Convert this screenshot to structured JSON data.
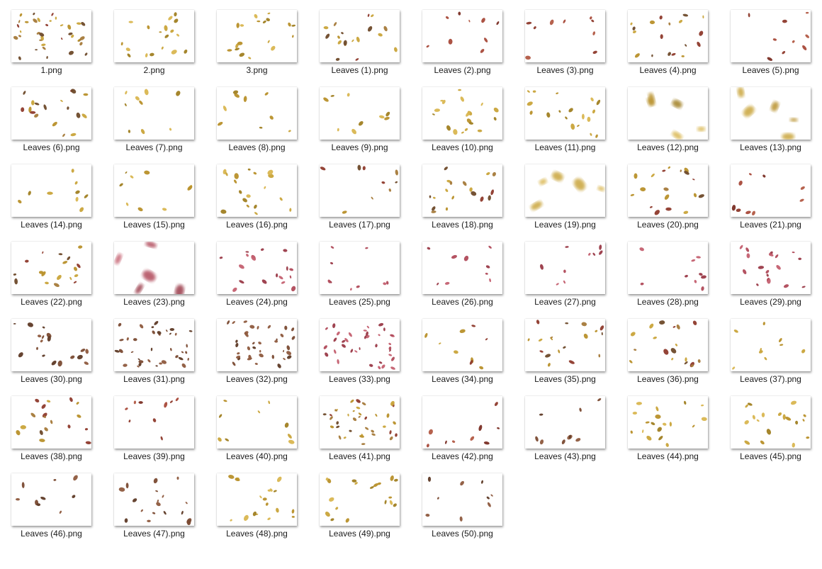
{
  "window": {
    "view": "large-icons"
  },
  "palettes": {
    "gold": [
      "#c9a43a",
      "#b8902a",
      "#d9b650",
      "#a07f22"
    ],
    "red": [
      "#8e3a2c",
      "#a84a3a",
      "#7a2e24",
      "#b25a45"
    ],
    "mixed": [
      "#c9a43a",
      "#8e3a2c",
      "#a57a3a",
      "#6e4a2a",
      "#b8902a"
    ],
    "pink": [
      "#b04a5a",
      "#c46070",
      "#9a3a48"
    ],
    "brown": [
      "#7a4a32",
      "#8e5a3e",
      "#5e3a26"
    ]
  },
  "files": [
    {
      "name": "1.png",
      "palette": "mixed",
      "density": "dense"
    },
    {
      "name": "2.png",
      "palette": "gold",
      "density": "medium"
    },
    {
      "name": "3.png",
      "palette": "gold",
      "density": "medium"
    },
    {
      "name": "Leaves (1).png",
      "palette": "mixed",
      "density": "medium"
    },
    {
      "name": "Leaves (2).png",
      "palette": "red",
      "density": "sparse"
    },
    {
      "name": "Leaves (3).png",
      "palette": "red",
      "density": "sparse"
    },
    {
      "name": "Leaves (4).png",
      "palette": "mixed",
      "density": "medium"
    },
    {
      "name": "Leaves (5).png",
      "palette": "red",
      "density": "sparse"
    },
    {
      "name": "Leaves (6).png",
      "palette": "mixed",
      "density": "medium"
    },
    {
      "name": "Leaves (7).png",
      "palette": "gold",
      "density": "sparse"
    },
    {
      "name": "Leaves (8).png",
      "palette": "gold",
      "density": "sparse"
    },
    {
      "name": "Leaves (9).png",
      "palette": "gold",
      "density": "sparse"
    },
    {
      "name": "Leaves (10).png",
      "palette": "gold",
      "density": "medium"
    },
    {
      "name": "Leaves (11).png",
      "palette": "gold",
      "density": "medium"
    },
    {
      "name": "Leaves (12).png",
      "palette": "gold",
      "density": "blur"
    },
    {
      "name": "Leaves (13).png",
      "palette": "gold",
      "density": "blur"
    },
    {
      "name": "Leaves (14).png",
      "palette": "gold",
      "density": "sparse"
    },
    {
      "name": "Leaves (15).png",
      "palette": "gold",
      "density": "sparse"
    },
    {
      "name": "Leaves (16).png",
      "palette": "gold",
      "density": "medium"
    },
    {
      "name": "Leaves (17).png",
      "palette": "mixed",
      "density": "sparse"
    },
    {
      "name": "Leaves (18).png",
      "palette": "mixed",
      "density": "medium"
    },
    {
      "name": "Leaves (19).png",
      "palette": "gold",
      "density": "blur"
    },
    {
      "name": "Leaves (20).png",
      "palette": "mixed",
      "density": "medium"
    },
    {
      "name": "Leaves (21).png",
      "palette": "red",
      "density": "sparse"
    },
    {
      "name": "Leaves (22).png",
      "palette": "mixed",
      "density": "medium"
    },
    {
      "name": "Leaves (23).png",
      "palette": "pink",
      "density": "blur"
    },
    {
      "name": "Leaves (24).png",
      "palette": "pink",
      "density": "medium"
    },
    {
      "name": "Leaves (25).png",
      "palette": "pink",
      "density": "sparse"
    },
    {
      "name": "Leaves (26).png",
      "palette": "pink",
      "density": "sparse"
    },
    {
      "name": "Leaves (27).png",
      "palette": "pink",
      "density": "sparse"
    },
    {
      "name": "Leaves (28).png",
      "palette": "pink",
      "density": "sparse"
    },
    {
      "name": "Leaves (29).png",
      "palette": "pink",
      "density": "medium"
    },
    {
      "name": "Leaves (30).png",
      "palette": "brown",
      "density": "medium"
    },
    {
      "name": "Leaves (31).png",
      "palette": "brown",
      "density": "dense"
    },
    {
      "name": "Leaves (32).png",
      "palette": "brown",
      "density": "dense"
    },
    {
      "name": "Leaves (33).png",
      "palette": "pink",
      "density": "dense"
    },
    {
      "name": "Leaves (34).png",
      "palette": "mixed",
      "density": "sparse"
    },
    {
      "name": "Leaves (35).png",
      "palette": "mixed",
      "density": "medium"
    },
    {
      "name": "Leaves (36).png",
      "palette": "mixed",
      "density": "medium"
    },
    {
      "name": "Leaves (37).png",
      "palette": "gold",
      "density": "sparse"
    },
    {
      "name": "Leaves (38).png",
      "palette": "mixed",
      "density": "medium"
    },
    {
      "name": "Leaves (39).png",
      "palette": "red",
      "density": "sparse"
    },
    {
      "name": "Leaves (40).png",
      "palette": "gold",
      "density": "sparse"
    },
    {
      "name": "Leaves (41).png",
      "palette": "mixed",
      "density": "dense"
    },
    {
      "name": "Leaves (42).png",
      "palette": "red",
      "density": "sparse"
    },
    {
      "name": "Leaves (43).png",
      "palette": "brown",
      "density": "sparse"
    },
    {
      "name": "Leaves (44).png",
      "palette": "gold",
      "density": "medium"
    },
    {
      "name": "Leaves (45).png",
      "palette": "gold",
      "density": "medium"
    },
    {
      "name": "Leaves (46).png",
      "palette": "brown",
      "density": "sparse"
    },
    {
      "name": "Leaves (47).png",
      "palette": "brown",
      "density": "medium"
    },
    {
      "name": "Leaves (48).png",
      "palette": "gold",
      "density": "medium"
    },
    {
      "name": "Leaves (49).png",
      "palette": "gold",
      "density": "medium"
    },
    {
      "name": "Leaves (50).png",
      "palette": "brown",
      "density": "sparse"
    }
  ]
}
